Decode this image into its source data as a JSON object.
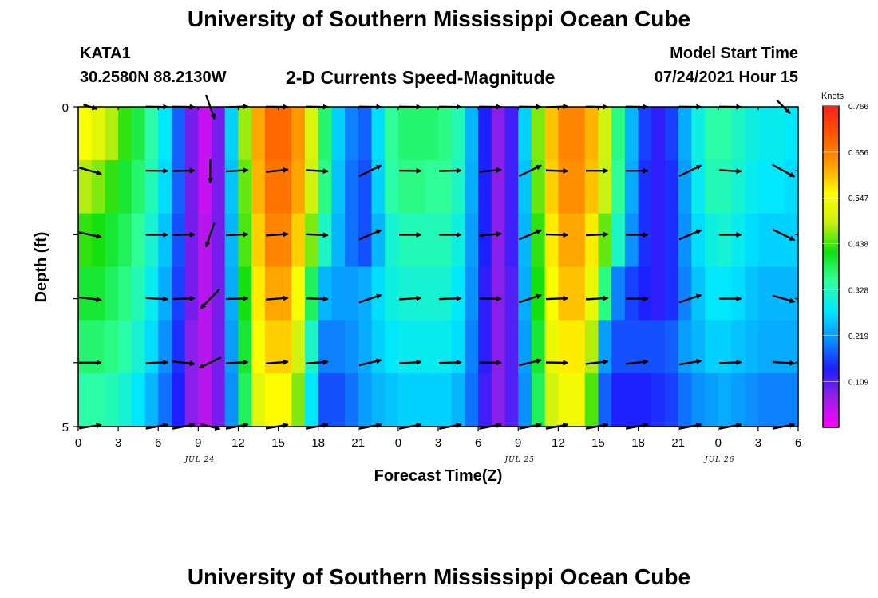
{
  "page": {
    "title_top": "University of Southern Mississippi Ocean Cube",
    "title_bottom": "University of Southern Mississippi Ocean Cube",
    "station_id": "KATA1",
    "station_coords": "30.2580N  88.2130W",
    "plot_title": "2-D Currents Speed-Magnitude",
    "model_start_label": "Model Start Time",
    "model_start_value": "07/24/2021 Hour 15"
  },
  "chart_data": {
    "type": "heatmap",
    "title": "2-D Currents Speed-Magnitude",
    "xlabel": "Forecast Time(Z)",
    "ylabel": "Depth (ft)",
    "y_ticks": [
      "0",
      "5"
    ],
    "ylim": [
      0,
      5
    ],
    "xlim": [
      0,
      54
    ],
    "x_tick_labels": [
      "0",
      "3",
      "6",
      "9",
      "12",
      "15",
      "18",
      "21",
      "0",
      "3",
      "6",
      "9",
      "12",
      "15",
      "18",
      "21",
      "0",
      "3",
      "6"
    ],
    "date_labels": [
      {
        "hour": 9,
        "label": "JUL 24"
      },
      {
        "hour": 33,
        "label": "JUL 25"
      },
      {
        "hour": 48,
        "label": "JUL 26"
      }
    ],
    "colorbar": {
      "label": "Knots",
      "min": 0.0,
      "max": 0.766,
      "ticks": [
        "0.766",
        "0.656",
        "0.547",
        "0.438",
        "0.328",
        "0.219",
        "0.109"
      ],
      "colors": [
        "#ff00ff",
        "#9b20e6",
        "#1e1eff",
        "#0a90ff",
        "#00e8ff",
        "#30ff9c",
        "#10e010",
        "#c8f010",
        "#ffff00",
        "#ff9c00",
        "#ff5a00",
        "#ff1e1e"
      ]
    },
    "depth_rows": [
      0,
      1,
      2,
      3,
      4,
      5
    ],
    "time_hours": [
      0,
      1,
      2,
      3,
      4,
      5,
      6,
      7,
      8,
      9,
      10,
      11,
      12,
      13,
      14,
      15,
      16,
      17,
      18,
      19,
      20,
      21,
      22,
      23,
      24,
      25,
      26,
      27,
      28,
      29,
      30,
      31,
      32,
      33,
      34,
      35,
      36,
      37,
      38,
      39,
      40,
      41,
      42,
      43,
      44,
      45,
      46,
      47,
      48,
      49,
      50,
      51,
      52,
      53
    ],
    "speed_knots": [
      [
        0.55,
        0.52,
        0.48,
        0.43,
        0.39,
        0.34,
        0.28,
        0.18,
        0.09,
        0.04,
        0.09,
        0.26,
        0.47,
        0.62,
        0.68,
        0.68,
        0.63,
        0.51,
        0.37,
        0.26,
        0.2,
        0.18,
        0.27,
        0.35,
        0.37,
        0.37,
        0.37,
        0.36,
        0.33,
        0.24,
        0.14,
        0.08,
        0.12,
        0.26,
        0.46,
        0.6,
        0.65,
        0.65,
        0.61,
        0.5,
        0.36,
        0.24,
        0.16,
        0.13,
        0.16,
        0.23,
        0.3,
        0.34,
        0.34,
        0.32,
        0.3,
        0.29,
        0.29,
        0.28
      ],
      [
        0.48,
        0.46,
        0.43,
        0.4,
        0.37,
        0.33,
        0.27,
        0.18,
        0.09,
        0.04,
        0.09,
        0.25,
        0.45,
        0.61,
        0.67,
        0.67,
        0.62,
        0.5,
        0.36,
        0.25,
        0.19,
        0.17,
        0.26,
        0.34,
        0.36,
        0.36,
        0.35,
        0.35,
        0.32,
        0.23,
        0.14,
        0.08,
        0.12,
        0.25,
        0.45,
        0.59,
        0.64,
        0.64,
        0.6,
        0.49,
        0.35,
        0.23,
        0.15,
        0.13,
        0.15,
        0.22,
        0.29,
        0.33,
        0.33,
        0.31,
        0.29,
        0.28,
        0.28,
        0.27
      ],
      [
        0.43,
        0.42,
        0.4,
        0.38,
        0.35,
        0.31,
        0.25,
        0.17,
        0.09,
        0.05,
        0.09,
        0.24,
        0.44,
        0.59,
        0.65,
        0.65,
        0.59,
        0.46,
        0.32,
        0.24,
        0.19,
        0.17,
        0.24,
        0.31,
        0.33,
        0.33,
        0.33,
        0.33,
        0.3,
        0.22,
        0.14,
        0.08,
        0.12,
        0.24,
        0.43,
        0.57,
        0.62,
        0.62,
        0.57,
        0.45,
        0.32,
        0.21,
        0.15,
        0.13,
        0.15,
        0.21,
        0.27,
        0.3,
        0.31,
        0.29,
        0.27,
        0.26,
        0.26,
        0.26
      ],
      [
        0.4,
        0.4,
        0.38,
        0.36,
        0.33,
        0.29,
        0.23,
        0.16,
        0.09,
        0.05,
        0.09,
        0.23,
        0.42,
        0.57,
        0.62,
        0.62,
        0.55,
        0.38,
        0.24,
        0.22,
        0.22,
        0.23,
        0.27,
        0.3,
        0.31,
        0.31,
        0.31,
        0.31,
        0.28,
        0.21,
        0.13,
        0.08,
        0.11,
        0.23,
        0.42,
        0.55,
        0.6,
        0.6,
        0.53,
        0.36,
        0.2,
        0.16,
        0.14,
        0.13,
        0.15,
        0.2,
        0.25,
        0.28,
        0.28,
        0.27,
        0.25,
        0.24,
        0.24,
        0.24
      ],
      [
        0.37,
        0.37,
        0.36,
        0.34,
        0.31,
        0.27,
        0.21,
        0.15,
        0.08,
        0.05,
        0.09,
        0.22,
        0.4,
        0.55,
        0.59,
        0.59,
        0.5,
        0.32,
        0.2,
        0.2,
        0.21,
        0.23,
        0.26,
        0.28,
        0.29,
        0.29,
        0.29,
        0.29,
        0.27,
        0.2,
        0.13,
        0.08,
        0.11,
        0.22,
        0.4,
        0.53,
        0.57,
        0.57,
        0.48,
        0.22,
        0.17,
        0.17,
        0.17,
        0.17,
        0.18,
        0.22,
        0.24,
        0.26,
        0.26,
        0.25,
        0.24,
        0.23,
        0.23,
        0.23
      ],
      [
        0.34,
        0.34,
        0.33,
        0.31,
        0.28,
        0.24,
        0.19,
        0.14,
        0.08,
        0.05,
        0.09,
        0.21,
        0.38,
        0.52,
        0.56,
        0.56,
        0.46,
        0.28,
        0.17,
        0.17,
        0.19,
        0.22,
        0.24,
        0.25,
        0.26,
        0.26,
        0.26,
        0.26,
        0.24,
        0.19,
        0.12,
        0.08,
        0.11,
        0.21,
        0.38,
        0.5,
        0.54,
        0.54,
        0.44,
        0.18,
        0.14,
        0.14,
        0.14,
        0.15,
        0.16,
        0.19,
        0.21,
        0.22,
        0.23,
        0.22,
        0.21,
        0.2,
        0.2,
        0.2
      ]
    ],
    "vector_hours": [
      0,
      5,
      7,
      9,
      11,
      14,
      17,
      21,
      24,
      27,
      30,
      33,
      35,
      38,
      41,
      45,
      48,
      52
    ],
    "vector_dx_dy": [
      [
        [
          0.56,
          0.18
        ],
        [
          0.92,
          0.01
        ],
        [
          0.92,
          0.01
        ],
        [
          0.35,
          1.0
        ],
        [
          0.92,
          -0.04
        ],
        [
          0.92,
          0.01
        ],
        [
          0.92,
          0.01
        ],
        [
          0.92,
          0.01
        ],
        [
          0.92,
          0.01
        ],
        [
          0.92,
          0.01
        ],
        [
          0.92,
          0.01
        ],
        [
          0.92,
          0.01
        ],
        [
          0.92,
          -0.04
        ],
        [
          0.92,
          0.01
        ],
        [
          0.92,
          0.01
        ],
        [
          0.92,
          0.01
        ],
        [
          0.92,
          0.01
        ],
        [
          0.55,
          0.55
        ]
      ],
      [
        [
          0.92,
          0.26
        ],
        [
          0.92,
          0.01
        ],
        [
          0.92,
          -0.02
        ],
        [
          0.0,
          1.0
        ],
        [
          0.92,
          -0.06
        ],
        [
          0.92,
          -0.1
        ],
        [
          0.92,
          0.05
        ],
        [
          0.92,
          -0.45
        ],
        [
          0.92,
          0.01
        ],
        [
          0.92,
          -0.02
        ],
        [
          0.92,
          -0.09
        ],
        [
          0.92,
          -0.45
        ],
        [
          0.92,
          0.03
        ],
        [
          0.92,
          0.0
        ],
        [
          0.92,
          0.0
        ],
        [
          0.92,
          -0.45
        ],
        [
          0.92,
          0.05
        ],
        [
          0.92,
          0.5
        ]
      ],
      [
        [
          0.92,
          0.2
        ],
        [
          0.92,
          0.0
        ],
        [
          0.92,
          -0.02
        ],
        [
          -0.35,
          1.0
        ],
        [
          0.92,
          -0.04
        ],
        [
          0.92,
          -0.06
        ],
        [
          0.92,
          0.04
        ],
        [
          0.92,
          -0.39
        ],
        [
          0.92,
          0.0
        ],
        [
          0.92,
          0.0
        ],
        [
          0.92,
          -0.09
        ],
        [
          0.92,
          -0.39
        ],
        [
          0.92,
          0.02
        ],
        [
          0.92,
          -0.04
        ],
        [
          0.92,
          0.0
        ],
        [
          0.92,
          -0.39
        ],
        [
          0.92,
          0.0
        ],
        [
          0.92,
          0.45
        ]
      ],
      [
        [
          0.92,
          0.11
        ],
        [
          0.92,
          0.05
        ],
        [
          0.92,
          -0.03
        ],
        [
          -0.78,
          0.8
        ],
        [
          0.92,
          -0.03
        ],
        [
          0.92,
          -0.07
        ],
        [
          0.92,
          0.03
        ],
        [
          0.92,
          -0.31
        ],
        [
          0.92,
          -0.06
        ],
        [
          0.92,
          -0.04
        ],
        [
          0.92,
          0.0
        ],
        [
          0.92,
          -0.31
        ],
        [
          0.92,
          -0.04
        ],
        [
          0.92,
          -0.06
        ],
        [
          0.92,
          0.0
        ],
        [
          0.92,
          -0.31
        ],
        [
          0.92,
          0.0
        ],
        [
          0.92,
          0.26
        ]
      ],
      [
        [
          0.92,
          0.0
        ],
        [
          0.92,
          -0.04
        ],
        [
          0.92,
          0.1
        ],
        [
          -0.92,
          0.45
        ],
        [
          0.92,
          -0.05
        ],
        [
          0.92,
          -0.07
        ],
        [
          0.92,
          -0.07
        ],
        [
          0.92,
          -0.22
        ],
        [
          0.92,
          -0.06
        ],
        [
          0.92,
          -0.03
        ],
        [
          0.92,
          0.0
        ],
        [
          0.92,
          -0.22
        ],
        [
          0.92,
          0.02
        ],
        [
          0.92,
          -0.11
        ],
        [
          0.92,
          -0.1
        ],
        [
          0.92,
          -0.16
        ],
        [
          0.92,
          -0.04
        ],
        [
          0.92,
          0.06
        ]
      ],
      [
        [
          0.92,
          -0.15
        ],
        [
          0.92,
          -0.17
        ],
        [
          0.92,
          -0.18
        ],
        [
          0.8,
          0.2
        ],
        [
          0.92,
          -0.18
        ],
        [
          0.92,
          -0.16
        ],
        [
          0.92,
          -0.18
        ],
        [
          0.92,
          -0.18
        ],
        [
          0.92,
          -0.18
        ],
        [
          0.92,
          -0.18
        ],
        [
          0.92,
          -0.18
        ],
        [
          0.92,
          -0.18
        ],
        [
          0.92,
          -0.18
        ],
        [
          0.92,
          -0.18
        ],
        [
          0.92,
          -0.18
        ],
        [
          0.92,
          -0.18
        ],
        [
          0.92,
          -0.18
        ],
        [
          0.92,
          -0.18
        ]
      ]
    ]
  }
}
